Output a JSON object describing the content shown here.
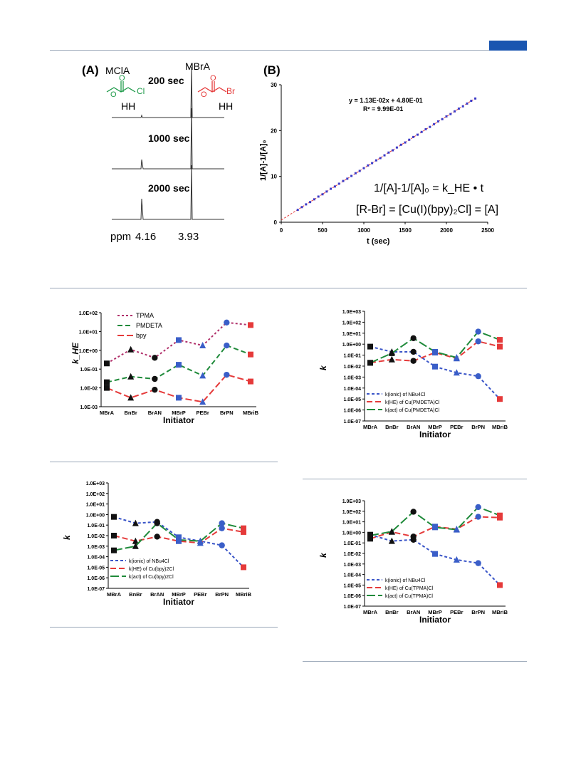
{
  "header": {
    "accent_color": "#1a56b0"
  },
  "panelA": {
    "label": "(A)",
    "mcla": "MClA",
    "mbra": "MBrA",
    "spectra": [
      "200 sec",
      "1000 sec",
      "2000 sec"
    ],
    "ppm_label": "ppm",
    "ppm1": "4.16",
    "ppm2": "3.93",
    "hh": "HH",
    "cl": "Cl",
    "br": "Br"
  },
  "panelB": {
    "label": "(B)",
    "eq": "y = 1.13E-02x + 4.80E-01",
    "r2": "R² = 9.99E-01",
    "ylabel": "1/[A]-1/[A]₀",
    "xlabel": "t (sec)",
    "formula1": "1/[A]-1/[A]₀ = k_HE • t",
    "formula2": "[R-Br] = [Cu(I)(bpy)₂Cl] = [A]"
  },
  "chart_data": [
    {
      "type": "scatter",
      "id": "B",
      "xlabel": "t (sec)",
      "ylabel": "1/[A]-1/[A]o",
      "xlim": [
        0,
        2500
      ],
      "ylim": [
        0,
        30
      ],
      "xticks": [
        0,
        500,
        1000,
        1500,
        2000,
        2500
      ],
      "yticks": [
        0,
        10,
        20,
        30
      ],
      "fit": {
        "slope": 0.0113,
        "intercept": 0.48
      },
      "x": [
        200,
        250,
        300,
        350,
        400,
        450,
        500,
        550,
        600,
        650,
        700,
        750,
        800,
        850,
        900,
        950,
        1000,
        1050,
        1100,
        1150,
        1200,
        1250,
        1300,
        1350,
        1400,
        1450,
        1500,
        1550,
        1600,
        1650,
        1700,
        1750,
        1800,
        1850,
        1900,
        1950,
        2000,
        2050,
        2100,
        2150,
        2200,
        2250,
        2300,
        2350
      ],
      "y": [
        2.7,
        3.3,
        3.9,
        4.4,
        5.0,
        5.6,
        6.1,
        6.7,
        7.3,
        7.8,
        8.4,
        9.0,
        9.5,
        10.1,
        10.7,
        11.2,
        11.8,
        12.4,
        12.9,
        13.5,
        14.0,
        14.6,
        15.2,
        15.7,
        16.3,
        16.9,
        17.4,
        18.0,
        18.6,
        19.1,
        19.7,
        20.3,
        20.8,
        21.4,
        22.0,
        22.5,
        23.1,
        23.6,
        24.2,
        24.8,
        25.3,
        25.9,
        26.5,
        27.0
      ]
    },
    {
      "type": "line",
      "id": "C",
      "ylabel": "k_HE",
      "xlabel": "Initiator",
      "log": true,
      "ylim": [
        -3,
        2
      ],
      "ytick_labels": [
        "1.0E-03",
        "1.0E-02",
        "1.0E-01",
        "1.0E+00",
        "1.0E+01",
        "1.0E+02"
      ],
      "categories": [
        "MBrA",
        "BnBr",
        "BrAN",
        "MBrP",
        "PEBr",
        "BrPN",
        "MBriB"
      ],
      "series": [
        {
          "name": "TPMA",
          "color": "#b0306a",
          "dash": "3,3",
          "values": [
            0.2,
            1.1,
            0.4,
            3.5,
            1.8,
            30,
            22
          ]
        },
        {
          "name": "PMDETA",
          "color": "#1f8a3a",
          "dash": "7,4",
          "values": [
            0.02,
            0.04,
            0.03,
            0.17,
            0.045,
            1.8,
            0.6
          ]
        },
        {
          "name": "bpy",
          "color": "#e53a3a",
          "dash": "9,4",
          "values": [
            0.01,
            0.003,
            0.008,
            0.003,
            0.0018,
            0.05,
            0.022
          ]
        }
      ]
    },
    {
      "type": "line",
      "id": "D",
      "ylabel": "k",
      "xlabel": "Initiator",
      "log": true,
      "ylim": [
        -7,
        3
      ],
      "ytick_labels": [
        "1.0E-07",
        "1.0E-06",
        "1.0E-05",
        "1.0E-04",
        "1.0E-03",
        "1.0E-02",
        "1.0E-01",
        "1.0E+00",
        "1.0E+01",
        "1.0E+02",
        "1.0E+03"
      ],
      "categories": [
        "MBrA",
        "BnBr",
        "BrAN",
        "MBrP",
        "PEBr",
        "BrPN",
        "MBriB"
      ],
      "series": [
        {
          "name": "k(ionic) of NBu4Cl",
          "color": "#3a55c8",
          "dash": "4,3",
          "values": [
            0.6,
            0.2,
            0.2,
            0.009,
            0.0025,
            0.0012,
            1e-05
          ]
        },
        {
          "name": "k(HE) of Cu(PMDETA)Cl",
          "color": "#e53a3a",
          "dash": "8,4",
          "values": [
            0.02,
            0.04,
            0.03,
            0.17,
            0.05,
            1.8,
            0.6
          ]
        },
        {
          "name": "k(act) of Cu(PMDETA)Cl",
          "color": "#1f8a3a",
          "dash": "12,4",
          "values": [
            0.02,
            0.15,
            3.5,
            0.2,
            0.06,
            14,
            2.5
          ]
        }
      ]
    },
    {
      "type": "line",
      "id": "E",
      "ylabel": "k",
      "xlabel": "Initiator",
      "log": true,
      "ylim": [
        -7,
        3
      ],
      "ytick_labels": [
        "1.0E-07",
        "1.0E-06",
        "1.0E-05",
        "1.0E-04",
        "1.0E-03",
        "1.0E-02",
        "1.0E-01",
        "1.0E+00",
        "1.0E+01",
        "1.0E+02",
        "1.0E+03"
      ],
      "categories": [
        "MBrA",
        "BnBr",
        "BrAN",
        "MBrP",
        "PEBr",
        "BrPN",
        "MBriB"
      ],
      "series": [
        {
          "name": "k(ionic) of NBu4Cl",
          "color": "#3a55c8",
          "dash": "4,3",
          "values": [
            0.6,
            0.15,
            0.2,
            0.007,
            0.003,
            0.0012,
            1e-05
          ]
        },
        {
          "name": "k(HE) of Cu(bpy)2Cl",
          "color": "#e53a3a",
          "dash": "8,4",
          "values": [
            0.01,
            0.003,
            0.008,
            0.003,
            0.002,
            0.05,
            0.022
          ]
        },
        {
          "name": "k(act) of Cu(bpy)2Cl",
          "color": "#1f8a3a",
          "dash": "12,4",
          "values": [
            0.0004,
            0.001,
            0.15,
            0.004,
            0.003,
            0.15,
            0.05
          ]
        }
      ]
    },
    {
      "type": "line",
      "id": "F",
      "ylabel": "k",
      "xlabel": "Initiator",
      "log": true,
      "ylim": [
        -7,
        3
      ],
      "ytick_labels": [
        "1.0E-07",
        "1.0E-06",
        "1.0E-05",
        "1.0E-04",
        "1.0E-03",
        "1.0E-02",
        "1.0E-01",
        "1.0E+00",
        "1.0E+01",
        "1.0E+02",
        "1.0E+03"
      ],
      "categories": [
        "MBrA",
        "BnBr",
        "BrAN",
        "MBrP",
        "PEBr",
        "BrPN",
        "MBriB"
      ],
      "series": [
        {
          "name": "k(ionic) of NBu4Cl",
          "color": "#3a55c8",
          "dash": "4,3",
          "values": [
            0.6,
            0.15,
            0.2,
            0.009,
            0.0025,
            0.0012,
            1e-05
          ]
        },
        {
          "name": "k(HE) of Cu(TPMA)Cl",
          "color": "#e53a3a",
          "dash": "8,4",
          "values": [
            0.25,
            1.1,
            0.4,
            3.5,
            2,
            30,
            25
          ]
        },
        {
          "name": "k(act) of Cu(TPMA)Cl",
          "color": "#1f8a3a",
          "dash": "12,4",
          "values": [
            0.5,
            1.2,
            90,
            3,
            1.8,
            250,
            40
          ]
        }
      ]
    }
  ]
}
